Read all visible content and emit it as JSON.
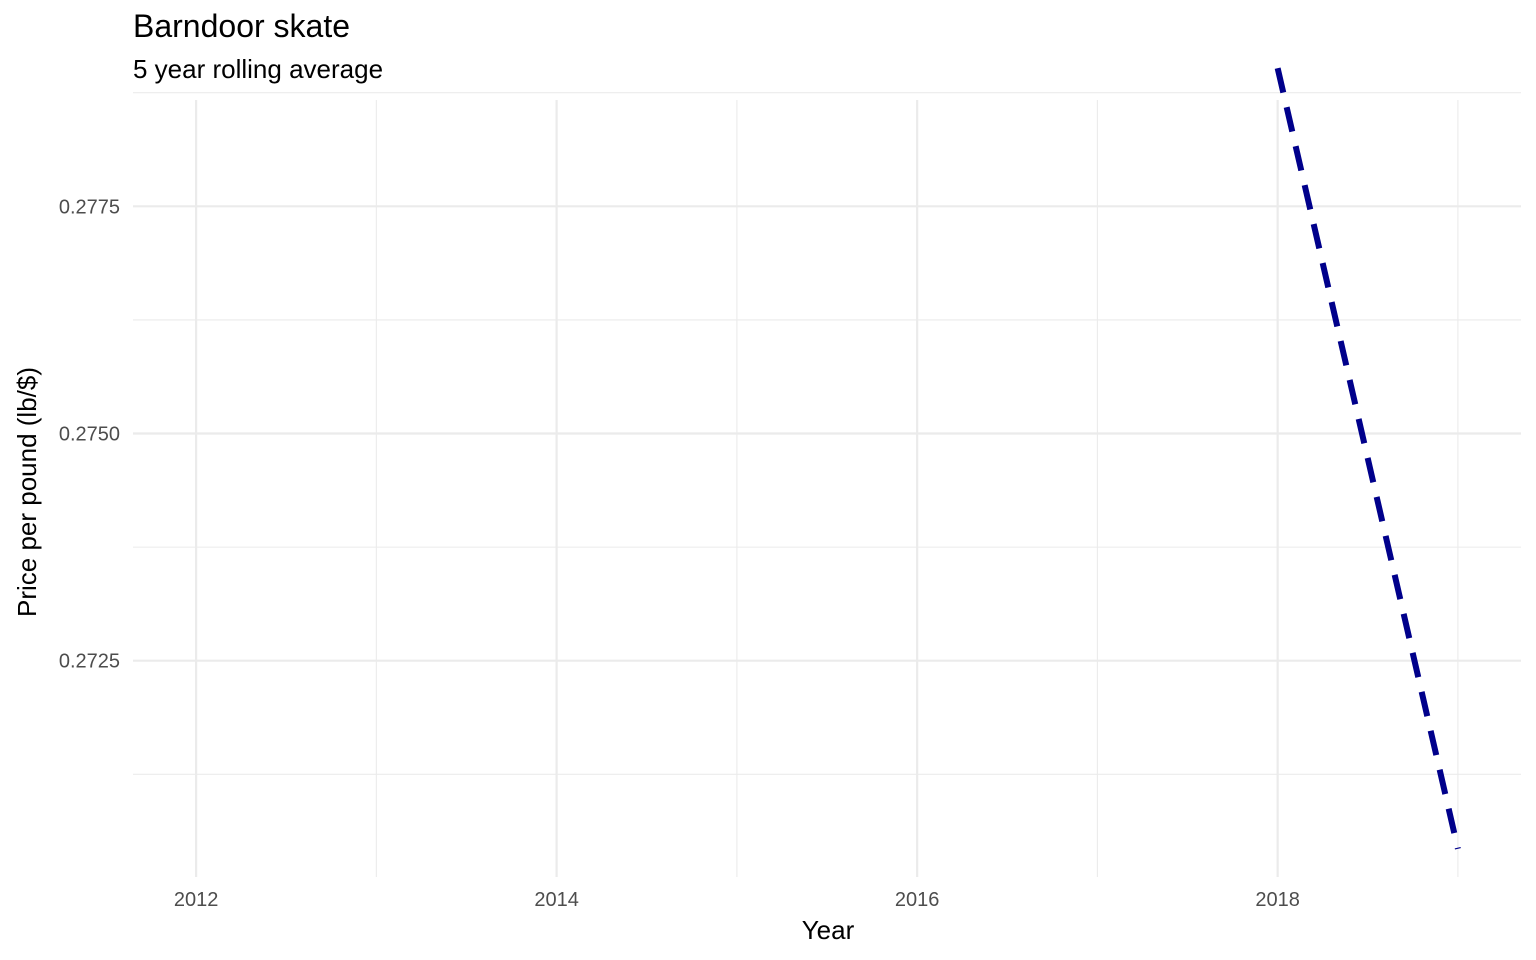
{
  "chart_data": {
    "type": "line",
    "title": "Barndoor skate",
    "subtitle": "5 year rolling average",
    "xlabel": "Year",
    "ylabel": "Price per pound (lb/$)",
    "xlim": [
      2011.65,
      2019.35
    ],
    "ylim": [
      0.27012,
      0.27867
    ],
    "x_ticks": [
      2012,
      2014,
      2016,
      2018
    ],
    "x_tick_labels": [
      "2012",
      "2014",
      "2016",
      "2018"
    ],
    "x_minor_ticks": [
      2013,
      2015,
      2017,
      2019
    ],
    "y_ticks": [
      0.2725,
      0.275,
      0.2775
    ],
    "y_tick_labels": [
      "0.2725",
      "0.2750",
      "0.2775"
    ],
    "y_minor_ticks": [
      0.27125,
      0.27375,
      0.27625,
      0.27875
    ],
    "grid": true,
    "legend": "none",
    "series": [
      {
        "x": [
          2018,
          2019
        ],
        "y": [
          0.27902,
          0.27043
        ],
        "color": "#00008B",
        "linestyle": "dashed"
      }
    ]
  }
}
